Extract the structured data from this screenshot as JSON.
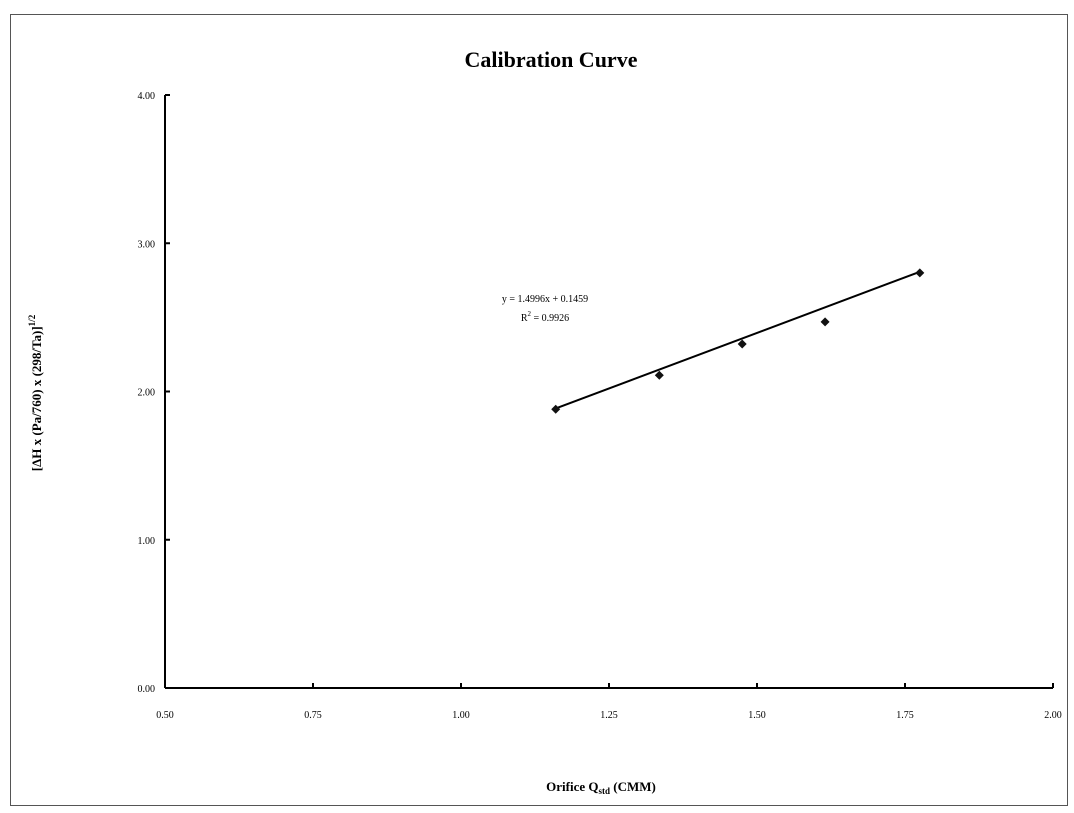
{
  "chart_data": {
    "type": "scatter",
    "title": "Calibration Curve",
    "xlabel": {
      "main": "Orifice Q",
      "sub": "std",
      "tail": " (CMM)"
    },
    "ylabel": {
      "main": "[ΔH x (Pa/760) x (298/Ta)]",
      "sup": "1/2"
    },
    "xlim": [
      0.5,
      2.0
    ],
    "ylim": [
      0.0,
      4.0
    ],
    "x_ticks": [
      0.5,
      0.75,
      1.0,
      1.25,
      1.5,
      1.75,
      2.0
    ],
    "x_tick_labels": [
      "0.50",
      "0.75",
      "1.00",
      "1.25",
      "1.50",
      "1.75",
      "2.00"
    ],
    "y_ticks": [
      0.0,
      1.0,
      2.0,
      3.0,
      4.0
    ],
    "y_tick_labels": [
      "0.00",
      "1.00",
      "2.00",
      "3.00",
      "4.00"
    ],
    "grid": false,
    "legend": "none",
    "series": [
      {
        "x": [
          1.16,
          1.335,
          1.475,
          1.615,
          1.775
        ],
        "y": [
          1.88,
          2.11,
          2.32,
          2.47,
          2.8
        ],
        "marker": "diamond",
        "color": "#111111"
      }
    ],
    "trendline": {
      "type": "linear",
      "slope": 1.4996,
      "intercept": 0.1459,
      "x_range": [
        1.16,
        1.775
      ]
    },
    "annotations": {
      "equation": "y = 1.4996x + 0.1459",
      "r2_main": "R",
      "r2_sup": "2",
      "r2_tail": " = 0.9926"
    }
  }
}
